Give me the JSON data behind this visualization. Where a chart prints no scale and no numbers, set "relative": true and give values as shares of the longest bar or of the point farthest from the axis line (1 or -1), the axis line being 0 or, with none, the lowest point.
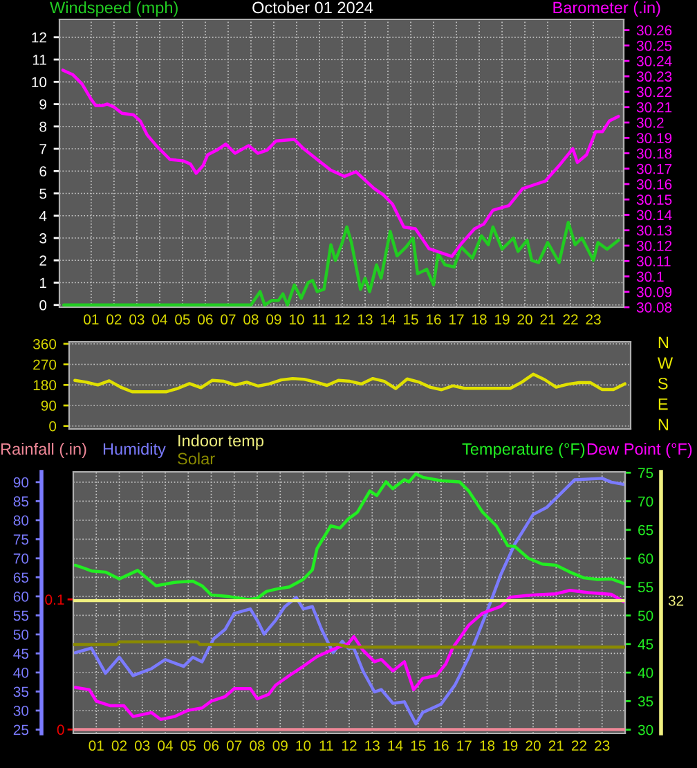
{
  "chart_data": [
    {
      "type": "line",
      "title": "October 01 2024",
      "legend": "top",
      "grid": true,
      "xlim": [
        -0.39,
        24.33
      ],
      "xticks": [
        {
          "value": 1,
          "label": "01"
        },
        {
          "value": 2,
          "label": "02"
        },
        {
          "value": 3,
          "label": "03"
        },
        {
          "value": 4,
          "label": "04"
        },
        {
          "value": 5,
          "label": "05"
        },
        {
          "value": 6,
          "label": "06"
        },
        {
          "value": 7,
          "label": "07"
        },
        {
          "value": 8,
          "label": "08"
        },
        {
          "value": 9,
          "label": "09"
        },
        {
          "value": 10,
          "label": "10"
        },
        {
          "value": 11,
          "label": "11"
        },
        {
          "value": 12,
          "label": "12"
        },
        {
          "value": 13,
          "label": "13"
        },
        {
          "value": 14,
          "label": "14"
        },
        {
          "value": 15,
          "label": "15"
        },
        {
          "value": 16,
          "label": "16"
        },
        {
          "value": 17,
          "label": "17"
        },
        {
          "value": 18,
          "label": "18"
        },
        {
          "value": 19,
          "label": "19"
        },
        {
          "value": 20,
          "label": "20"
        },
        {
          "value": 21,
          "label": "21"
        },
        {
          "value": 22,
          "label": "22"
        },
        {
          "value": 23,
          "label": "23"
        }
      ],
      "ylim": [
        -0.1,
        12.8
      ],
      "yticks": [
        0,
        1,
        2,
        3,
        4,
        5,
        6,
        7,
        8,
        9,
        10,
        11,
        12
      ],
      "y2lim": [
        30.08,
        30.267
      ],
      "y2ticks": [
        30.08,
        30.09,
        30.1,
        30.11,
        30.12,
        30.13,
        30.14,
        30.15,
        30.16,
        30.17,
        30.18,
        30.19,
        30.2,
        30.21,
        30.22,
        30.23,
        30.24,
        30.25,
        30.26
      ],
      "series": [
        {
          "name": "Windspeed (mph)",
          "color": "#22cc22",
          "axis": "y",
          "x": [
            -0.2,
            8.0,
            8.4,
            8.6,
            8.9,
            9.2,
            9.4,
            9.6,
            9.9,
            10.2,
            10.5,
            10.7,
            10.9,
            11.2,
            11.5,
            11.7,
            12.0,
            12.2,
            12.4,
            12.8,
            13.0,
            13.2,
            13.5,
            13.7,
            14.1,
            14.4,
            14.8,
            15.1,
            15.3,
            15.7,
            16.0,
            16.2,
            16.5,
            16.9,
            17.2,
            17.7,
            18.1,
            18.4,
            18.6,
            19.0,
            19.5,
            19.7,
            20.1,
            20.3,
            20.6,
            21.0,
            21.5,
            21.9,
            22.2,
            22.5,
            23.0,
            23.2,
            23.6,
            24.1
          ],
          "values": [
            0,
            0,
            0.6,
            0,
            0.2,
            0.2,
            0.5,
            0,
            0.9,
            0.3,
            1.0,
            1.1,
            0.6,
            0.7,
            2.7,
            2.0,
            2.8,
            3.5,
            2.8,
            0.7,
            1.2,
            0.6,
            1.8,
            1.2,
            3.3,
            2.2,
            2.6,
            3.0,
            1.4,
            1.6,
            0.9,
            2.3,
            1.8,
            1.7,
            2.6,
            2.1,
            3.1,
            2.7,
            3.5,
            2.5,
            3.0,
            2.4,
            2.9,
            2.0,
            1.9,
            2.8,
            1.9,
            3.7,
            2.7,
            3.0,
            2.0,
            2.8,
            2.5,
            2.9
          ]
        },
        {
          "name": "Barometer (.in)",
          "color": "#ff00ff",
          "axis": "y2",
          "x": [
            -0.24,
            0.2,
            0.6,
            1.0,
            1.2,
            1.5,
            1.7,
            2.0,
            2.35,
            2.85,
            3.15,
            3.45,
            3.85,
            4.45,
            5.05,
            5.35,
            5.6,
            5.9,
            6.1,
            6.5,
            6.9,
            7.3,
            7.9,
            8.3,
            8.7,
            9.1,
            9.9,
            10.3,
            10.9,
            11.5,
            12.1,
            12.6,
            13.4,
            13.8,
            14.2,
            14.7,
            15.2,
            15.8,
            16.4,
            16.8,
            17.2,
            17.8,
            18.2,
            18.6,
            19.3,
            19.9,
            20.3,
            20.9,
            21.5,
            22.1,
            22.3,
            22.7,
            23.1,
            23.4,
            23.7,
            24.1
          ],
          "values": [
            30.234,
            30.231,
            30.225,
            30.215,
            30.211,
            30.211,
            30.212,
            30.21,
            30.206,
            30.205,
            30.201,
            30.192,
            30.185,
            30.176,
            30.175,
            30.173,
            30.167,
            30.172,
            30.179,
            30.182,
            30.186,
            30.18,
            30.185,
            30.18,
            30.182,
            30.188,
            30.189,
            30.183,
            30.176,
            30.169,
            30.165,
            30.168,
            30.157,
            30.153,
            30.147,
            30.132,
            30.131,
            30.118,
            30.115,
            30.113,
            30.121,
            30.131,
            30.134,
            30.143,
            30.146,
            30.157,
            30.159,
            30.162,
            30.172,
            30.183,
            30.174,
            30.179,
            30.194,
            30.194,
            30.201,
            30.204
          ]
        }
      ]
    },
    {
      "type": "line",
      "grid": true,
      "tick_labels": "y",
      "categories": [
        null,
        null,
        null,
        null,
        null,
        null,
        null,
        null,
        null,
        null,
        null,
        null,
        null,
        null,
        null,
        null,
        null,
        null,
        null,
        null,
        null,
        null,
        null,
        null,
        null,
        null,
        null,
        null,
        null,
        null,
        null,
        null,
        null,
        null,
        null,
        null,
        null,
        null,
        null,
        null,
        null,
        null,
        null,
        null,
        null,
        null,
        null,
        null,
        null
      ],
      "ylim": [
        -13,
        369
      ],
      "yticks": [
        0,
        90,
        180,
        270,
        360
      ],
      "annotations": [
        "N",
        "W",
        "S",
        "E",
        "N"
      ],
      "series": [
        {
          "color": "#e0e000",
          "axis": "y",
          "values": [
            200,
            192,
            180,
            198,
            170,
            150,
            150,
            150,
            150,
            165,
            186,
            168,
            200,
            196,
            180,
            192,
            175,
            185,
            202,
            208,
            205,
            193,
            178,
            200,
            196,
            184,
            208,
            196,
            164,
            206,
            193,
            170,
            159,
            176,
            165,
            165,
            165,
            165,
            165,
            192,
            227,
            203,
            170,
            183,
            190,
            190,
            160,
            160,
            185
          ]
        }
      ]
    },
    {
      "type": "line",
      "legend": "top",
      "grid": true,
      "xlim": [
        0,
        24
      ],
      "xticks": [
        {
          "value": 1,
          "label": "01"
        },
        {
          "value": 2,
          "label": "02"
        },
        {
          "value": 3,
          "label": "03"
        },
        {
          "value": 4,
          "label": "04"
        },
        {
          "value": 5,
          "label": "05"
        },
        {
          "value": 6,
          "label": "06"
        },
        {
          "value": 7,
          "label": "07"
        },
        {
          "value": 8,
          "label": "08"
        },
        {
          "value": 9,
          "label": "09"
        },
        {
          "value": 10,
          "label": "10"
        },
        {
          "value": 11,
          "label": "11"
        },
        {
          "value": 12,
          "label": "12"
        },
        {
          "value": 13,
          "label": "13"
        },
        {
          "value": 14,
          "label": "14"
        },
        {
          "value": 15,
          "label": "15"
        },
        {
          "value": 16,
          "label": "16"
        },
        {
          "value": 17,
          "label": "17"
        },
        {
          "value": 18,
          "label": "18"
        },
        {
          "value": 19,
          "label": "19"
        },
        {
          "value": 20,
          "label": "20"
        },
        {
          "value": 21,
          "label": "21"
        },
        {
          "value": 22,
          "label": "22"
        },
        {
          "value": 23,
          "label": "23"
        }
      ],
      "ylim": [
        24,
        92.7
      ],
      "yticks": [
        25,
        30,
        35,
        40,
        45,
        50,
        55,
        60,
        65,
        70,
        75,
        80,
        85,
        90
      ],
      "y2lim": [
        29.35,
        75.15
      ],
      "y2ticks": [
        30,
        35,
        40,
        45,
        50,
        55,
        60,
        65,
        70,
        75
      ],
      "y3lim": [
        -0.003,
        0.198
      ],
      "y3ticks": [
        0,
        0.1
      ],
      "series": [
        {
          "name": "Rainfall (.in)",
          "color": "#f08898",
          "axis": "y3",
          "x": [
            0,
            24
          ],
          "values": [
            0,
            0
          ]
        },
        {
          "name": "Humidity",
          "color": "#7b7bff",
          "axis": "y",
          "x": [
            0.08,
            0.79,
            1.4,
            2.0,
            2.6,
            3.4,
            4.0,
            4.8,
            5.2,
            5.6,
            6.1,
            6.6,
            7.0,
            7.7,
            8.0,
            8.3,
            8.8,
            9.2,
            9.7,
            10.0,
            10.4,
            10.8,
            11.3,
            11.7,
            11.96,
            12.2,
            12.6,
            13.1,
            13.4,
            13.9,
            14.4,
            14.9,
            15.2,
            16.0,
            16.6,
            17.2,
            18.0,
            18.6,
            19.2,
            20.0,
            20.6,
            21.2,
            21.8,
            23.0,
            23.4,
            23.95
          ],
          "values": [
            45.2,
            46.4,
            39.8,
            44.0,
            39.2,
            41.0,
            43.4,
            41.6,
            44.0,
            42.8,
            48.8,
            51.3,
            55.5,
            56.7,
            53.7,
            50.1,
            53.7,
            57.3,
            59.7,
            56.7,
            57.3,
            51.3,
            45.2,
            48.2,
            46.4,
            46.4,
            40.4,
            34.9,
            35.5,
            31.9,
            32.3,
            26.5,
            29.5,
            31.7,
            36.7,
            44.0,
            56.1,
            65.8,
            73.7,
            81.5,
            83.4,
            87.0,
            90.6,
            91.0,
            90.0,
            89.4
          ]
        },
        {
          "name": "Temperature (°F)",
          "color": "#22ee22",
          "axis": "y2",
          "x": [
            0.08,
            0.39,
            0.79,
            1.4,
            2.0,
            2.8,
            3.6,
            4.4,
            5.2,
            5.6,
            6.0,
            6.8,
            7.6,
            8.0,
            8.4,
            8.8,
            9.4,
            10.0,
            10.4,
            10.6,
            11.2,
            11.6,
            11.96,
            12.36,
            12.9,
            13.2,
            13.6,
            13.9,
            14.4,
            14.6,
            14.9,
            15.2,
            16.0,
            16.8,
            17.2,
            17.8,
            18.4,
            18.9,
            19.2,
            19.8,
            20.4,
            21.0,
            21.6,
            22.2,
            22.8,
            23.4,
            23.95
          ],
          "values": [
            58.8,
            58.4,
            57.8,
            57.6,
            56.4,
            57.9,
            55.2,
            55.8,
            56.0,
            55.2,
            53.6,
            53.3,
            52.8,
            53.0,
            54.2,
            54.6,
            55.0,
            56.3,
            58.0,
            61.7,
            65.7,
            65.3,
            66.9,
            68.1,
            71.8,
            71.0,
            73.4,
            72.2,
            73.8,
            73.4,
            74.8,
            74.2,
            73.6,
            73.4,
            71.8,
            68.1,
            65.7,
            62.2,
            62.1,
            60.0,
            59.0,
            58.8,
            57.6,
            56.6,
            56.3,
            56.4,
            55.6
          ]
        },
        {
          "name": "Dew Point (°F)",
          "color": "#ff00ff",
          "axis": "y2",
          "x": [
            0.08,
            0.7,
            1.0,
            1.6,
            2.2,
            2.6,
            3.4,
            3.8,
            4.4,
            5.0,
            5.6,
            6.0,
            6.6,
            7.0,
            7.7,
            8.0,
            8.5,
            8.8,
            9.4,
            10.0,
            10.6,
            11.2,
            11.96,
            12.2,
            12.6,
            13.1,
            13.4,
            13.9,
            14.4,
            14.8,
            15.2,
            15.8,
            16.2,
            16.5,
            17.2,
            17.8,
            18.6,
            19.0,
            20.0,
            21.0,
            21.6,
            22.4,
            23.4,
            23.95
          ],
          "values": [
            37.4,
            37.0,
            35.0,
            34.2,
            34.2,
            32.3,
            33.0,
            31.8,
            32.3,
            33.4,
            33.8,
            35.0,
            35.8,
            37.2,
            37.2,
            35.4,
            36.2,
            37.8,
            39.5,
            41.1,
            42.8,
            43.9,
            45.1,
            46.3,
            43.9,
            41.9,
            42.3,
            40.3,
            41.9,
            37.0,
            39.0,
            39.5,
            41.5,
            44.3,
            48.3,
            50.4,
            51.6,
            53.2,
            53.6,
            53.8,
            54.4,
            54.0,
            53.7,
            52.4
          ]
        }
      ]
    },
    {
      "type": "line",
      "relative": true,
      "legend": "top",
      "tick_labels": false,
      "xlim": [
        0,
        24
      ],
      "annotations": [
        "32"
      ],
      "series": [
        {
          "name": "Indoor temp",
          "color": "#f0f080",
          "x": [
            0,
            24
          ],
          "values": [
            1,
            1
          ]
        },
        {
          "name": "Solar",
          "color": "#8a8a00",
          "x": [
            0,
            1.9,
            2.0,
            5.4,
            5.5,
            11.5,
            12.0,
            24.0
          ],
          "values": [
            0.67,
            0.67,
            0.69,
            0.69,
            0.67,
            0.67,
            0.65,
            0.65
          ]
        }
      ]
    }
  ]
}
